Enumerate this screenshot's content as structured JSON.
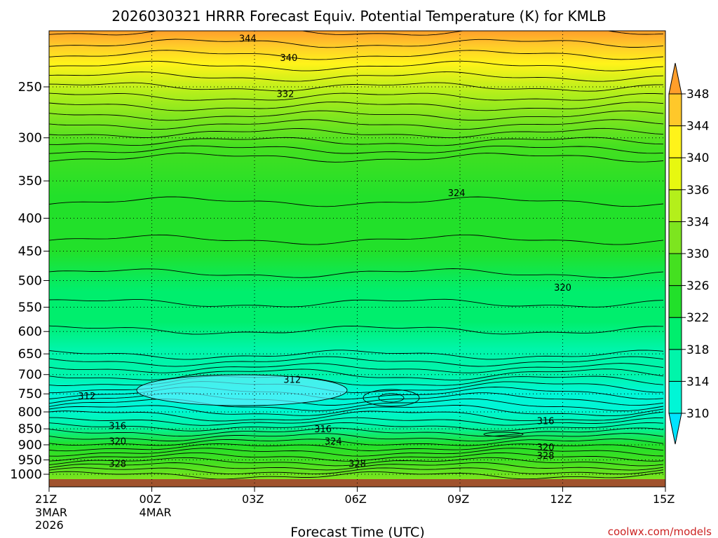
{
  "chart_data": {
    "type": "heatmap",
    "title": "2026030321 HRRR Forecast Equiv. Potential Temperature (K) for KMLB",
    "xlabel": "Forecast Time (UTC)",
    "ylabel": "",
    "credit": "coolwx.com/models",
    "x_ticks": [
      {
        "hours": 0,
        "label": "21Z",
        "sub": [
          "3MAR",
          "2026"
        ]
      },
      {
        "hours": 3,
        "label": "00Z",
        "sub": [
          "4MAR"
        ]
      },
      {
        "hours": 6,
        "label": "03Z",
        "sub": []
      },
      {
        "hours": 9,
        "label": "06Z",
        "sub": []
      },
      {
        "hours": 12,
        "label": "09Z",
        "sub": []
      },
      {
        "hours": 15,
        "label": "12Z",
        "sub": []
      },
      {
        "hours": 18,
        "label": "15Z",
        "sub": []
      }
    ],
    "xlim": [
      0,
      18
    ],
    "y_ticks": [
      250,
      300,
      350,
      400,
      450,
      500,
      550,
      600,
      650,
      700,
      750,
      800,
      850,
      900,
      950,
      1000
    ],
    "ylim_hpa": [
      200,
      1030
    ],
    "colorbar_levels": [
      310,
      314,
      318,
      322,
      326,
      330,
      334,
      336,
      340,
      344,
      348
    ],
    "colorbar_colors": [
      "#00e4ff",
      "#00f6d6",
      "#00f5aa",
      "#00ee6d",
      "#22e02a",
      "#44e020",
      "#7de51f",
      "#b4ef1b",
      "#e7f810",
      "#fff31a",
      "#ffc82a",
      "#ff9e2a"
    ],
    "ground_color": "#a0522d",
    "profile": [
      {
        "p": 200,
        "theta": 349
      },
      {
        "p": 215,
        "theta": 344
      },
      {
        "p": 230,
        "theta": 340
      },
      {
        "p": 255,
        "theta": 334
      },
      {
        "p": 280,
        "theta": 330
      },
      {
        "p": 310,
        "theta": 326
      },
      {
        "p": 370,
        "theta": 324
      },
      {
        "p": 450,
        "theta": 323
      },
      {
        "p": 520,
        "theta": 321
      },
      {
        "p": 580,
        "theta": 319
      },
      {
        "p": 640,
        "theta": 317
      },
      {
        "p": 700,
        "theta": 314
      },
      {
        "p": 745,
        "theta": 311
      },
      {
        "p": 790,
        "theta": 313
      },
      {
        "p": 840,
        "theta": 317
      },
      {
        "p": 900,
        "theta": 322
      },
      {
        "p": 960,
        "theta": 328
      },
      {
        "p": 1020,
        "theta": 332
      }
    ],
    "contour_labels": [
      {
        "value": "344",
        "hours": 5.8,
        "p": 210
      },
      {
        "value": "340",
        "hours": 7.0,
        "p": 225
      },
      {
        "value": "332",
        "hours": 6.9,
        "p": 256
      },
      {
        "value": "324",
        "hours": 11.9,
        "p": 365
      },
      {
        "value": "320",
        "hours": 15.0,
        "p": 512
      },
      {
        "value": "312",
        "hours": 7.1,
        "p": 712
      },
      {
        "value": "312",
        "hours": 1.1,
        "p": 755
      },
      {
        "value": "316",
        "hours": 2.0,
        "p": 840
      },
      {
        "value": "316",
        "hours": 8.0,
        "p": 850
      },
      {
        "value": "316",
        "hours": 14.5,
        "p": 825
      },
      {
        "value": "320",
        "hours": 2.0,
        "p": 888
      },
      {
        "value": "324",
        "hours": 8.3,
        "p": 888
      },
      {
        "value": "320",
        "hours": 14.5,
        "p": 907
      },
      {
        "value": "328",
        "hours": 2.0,
        "p": 962
      },
      {
        "value": "328",
        "hours": 9.0,
        "p": 962
      },
      {
        "value": "328",
        "hours": 14.5,
        "p": 935
      }
    ]
  }
}
